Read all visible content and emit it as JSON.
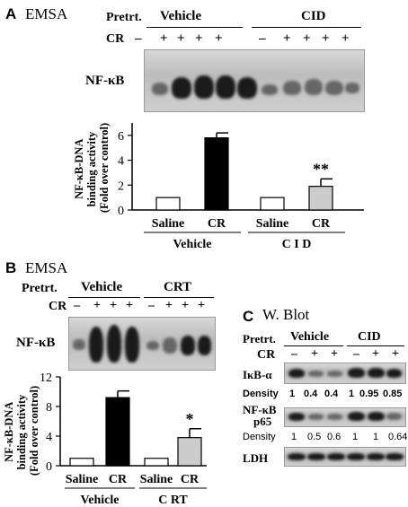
{
  "panelA": {
    "letter": "A",
    "method": "EMSA",
    "pretrt_label": "Pretrt.",
    "cr_label": "CR",
    "groups": [
      "Vehicle",
      "CID"
    ],
    "cr_signs": [
      "–",
      "+",
      "+",
      "+",
      "+",
      "–",
      "+",
      "+",
      "+",
      "+"
    ],
    "band_label": "NF-κB",
    "ylabel": [
      "NF-κB-DNA",
      "binding activity",
      "(Fold over control)"
    ],
    "ticks": [
      "0",
      "2",
      "4",
      "6"
    ],
    "categories": [
      "Saline",
      "CR",
      "Saline",
      "CR"
    ],
    "group_labels": [
      "Vehicle",
      "C I D"
    ],
    "sig": "**"
  },
  "panelB": {
    "letter": "B",
    "method": "EMSA",
    "pretrt_label": "Pretrt.",
    "cr_label": "CR",
    "groups": [
      "Vehicle",
      "CRT"
    ],
    "cr_signs": [
      "–",
      "+",
      "+",
      "+",
      "–",
      "+",
      "+",
      "+"
    ],
    "band_label": "NF-κB",
    "ylabel": [
      "NF-κB-DNA",
      "binding activity",
      "(Fold over control)"
    ],
    "ticks": [
      "0",
      "4",
      "8",
      "12"
    ],
    "categories": [
      "Saline",
      "CR",
      "Saline",
      "CR"
    ],
    "group_labels": [
      "Vehicle",
      "C RT"
    ],
    "sig": "*"
  },
  "panelC": {
    "letter": "C",
    "method": "W. Blot",
    "pretrt_label": "Pretrt.",
    "cr_label": "CR",
    "groups": [
      "Vehicle",
      "CID"
    ],
    "cr_signs": [
      "–",
      "+",
      "+",
      "–",
      "+",
      "+"
    ],
    "row1_label": "IκB-α",
    "density_label": "Density",
    "density1": [
      "1",
      "0.4",
      "0.4",
      "1",
      "0.95",
      "0.85"
    ],
    "row2_label": [
      "NF-κB",
      "p65"
    ],
    "density2": [
      "1",
      "0.5",
      "0.6",
      "1",
      "1",
      "0.64"
    ],
    "row3_label": "LDH"
  },
  "chart_data": [
    {
      "type": "bar",
      "categories": [
        "Vehicle Saline",
        "Vehicle CR",
        "CID Saline",
        "CID CR"
      ],
      "values": [
        1.0,
        5.8,
        1.0,
        1.9
      ],
      "errors": [
        0,
        0.4,
        0,
        0.6
      ],
      "colors": [
        "#ffffff",
        "#000000",
        "#ffffff",
        "#cccccc"
      ],
      "ylabel": "NF-κB-DNA binding activity (Fold over control)",
      "ylim": [
        0,
        7
      ],
      "annotations": [
        "**"
      ]
    },
    {
      "type": "bar",
      "categories": [
        "Vehicle Saline",
        "Vehicle CR",
        "CRT Saline",
        "CRT CR"
      ],
      "values": [
        1.0,
        9.2,
        1.0,
        3.8
      ],
      "errors": [
        0,
        0.9,
        0,
        1.2
      ],
      "colors": [
        "#ffffff",
        "#000000",
        "#ffffff",
        "#cccccc"
      ],
      "ylabel": "NF-κB-DNA binding activity (Fold over control)",
      "ylim": [
        0,
        12
      ],
      "annotations": [
        "*"
      ]
    }
  ]
}
